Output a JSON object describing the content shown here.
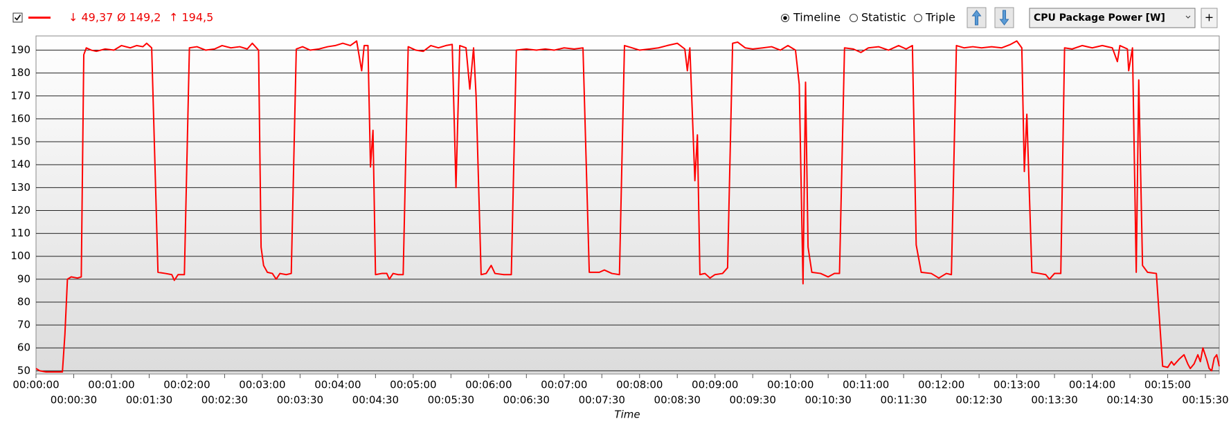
{
  "toolbar": {
    "stats": [
      "↓ 49,37",
      "Ø 149,2",
      "↑ 194,5"
    ],
    "modes": [
      "Timeline",
      "Statistic",
      "Triple"
    ],
    "sensor": "CPU Package Power [W]",
    "add_button": "+"
  },
  "chart_data": {
    "type": "line",
    "x_label": "Time",
    "color": "#ff0000",
    "grid": true,
    "x": [
      0,
      3,
      8,
      14,
      21,
      23,
      25,
      28,
      33,
      36,
      38,
      40,
      44,
      48,
      55,
      62,
      68,
      75,
      80,
      85,
      88,
      92,
      97,
      103,
      108,
      110,
      113,
      118,
      122,
      128,
      135,
      142,
      148,
      155,
      162,
      168,
      172,
      177,
      179,
      181,
      184,
      188,
      191,
      194,
      199,
      203,
      207,
      212,
      218,
      225,
      232,
      238,
      244,
      250,
      255,
      259,
      261,
      264,
      266,
      268,
      270,
      275,
      279,
      281,
      284,
      288,
      292,
      296,
      302,
      308,
      314,
      320,
      326,
      331,
      334,
      337,
      342,
      345,
      348,
      350,
      354,
      358,
      362,
      365,
      372,
      378,
      382,
      390,
      398,
      405,
      412,
      420,
      428,
      435,
      440,
      448,
      452,
      458,
      464,
      468,
      474,
      480,
      488,
      495,
      502,
      510,
      516,
      518,
      520,
      524,
      526,
      528,
      532,
      536,
      540,
      546,
      550,
      554,
      558,
      564,
      570,
      578,
      585,
      592,
      598,
      604,
      607,
      610,
      612,
      614,
      617,
      624,
      630,
      635,
      639,
      643,
      650,
      656,
      662,
      670,
      678,
      686,
      692,
      697,
      700,
      704,
      712,
      718,
      724,
      728,
      732,
      738,
      745,
      752,
      760,
      768,
      775,
      780,
      784,
      786,
      788,
      792,
      798,
      803,
      806,
      810,
      815,
      818,
      824,
      832,
      840,
      848,
      856,
      860,
      862,
      868,
      869,
      872,
      875,
      877,
      880,
      884,
      891,
      896,
      900,
      903,
      905,
      909,
      913,
      916,
      918,
      921,
      924,
      926,
      928,
      931,
      933,
      935,
      937,
      939,
      941
    ],
    "values": [
      51,
      50,
      49.5,
      49.5,
      49.5,
      66,
      90,
      91,
      90.5,
      91,
      188,
      191,
      190,
      189.5,
      190.5,
      190,
      192,
      191,
      192,
      191.5,
      193,
      191,
      93,
      92.5,
      92,
      89.5,
      92,
      92,
      191,
      191.5,
      190,
      190.5,
      192,
      191,
      191.5,
      190.5,
      193,
      190,
      104,
      96,
      93,
      92.5,
      90,
      92.5,
      92,
      92.5,
      190.5,
      191.5,
      190,
      190.5,
      191.5,
      192,
      193,
      192,
      194,
      181,
      192,
      192,
      139,
      155,
      92,
      92.5,
      92.5,
      90,
      92.5,
      92,
      92,
      191.5,
      190,
      189.5,
      192,
      191,
      192,
      192.5,
      130,
      192,
      191,
      173,
      191,
      170,
      92,
      92.5,
      96,
      92.5,
      92,
      92,
      190,
      190.5,
      190,
      190.5,
      190,
      191,
      190.5,
      191,
      93,
      93,
      94,
      92.5,
      92,
      192,
      191,
      190,
      190.5,
      191,
      192,
      193,
      190.5,
      181,
      191,
      133,
      153,
      92,
      92.5,
      90.5,
      92,
      92.5,
      95,
      193,
      193.5,
      191,
      190.5,
      191,
      191.5,
      190,
      192,
      190,
      175,
      88,
      176,
      104,
      93,
      92.5,
      91,
      92.5,
      92.5,
      191,
      190.5,
      189,
      191,
      191.5,
      190,
      192,
      190.5,
      192,
      105,
      93,
      92.5,
      90.5,
      92.5,
      92,
      192,
      191,
      191.5,
      191,
      191.5,
      191,
      192.5,
      194,
      191,
      137,
      162,
      93,
      92.5,
      92,
      90,
      92.5,
      92.5,
      191,
      190.5,
      192,
      191,
      192,
      191,
      185,
      192,
      190.5,
      181,
      191,
      93,
      177,
      96,
      93,
      92.5,
      52,
      51.5,
      54,
      52.5,
      55,
      57,
      53,
      51,
      53,
      57,
      54,
      60,
      55,
      51,
      50,
      55.5,
      57,
      52
    ],
    "xlim": [
      0,
      941
    ],
    "ylim": [
      48.6,
      196.2
    ],
    "yticks": [
      50,
      60,
      70,
      80,
      90,
      100,
      110,
      120,
      130,
      140,
      150,
      160,
      170,
      180,
      190
    ],
    "xticks": [
      {
        "value": 0,
        "label": "00:00:00"
      },
      {
        "value": 30,
        "label": "00:00:30"
      },
      {
        "value": 60,
        "label": "00:01:00"
      },
      {
        "value": 90,
        "label": "00:01:30"
      },
      {
        "value": 120,
        "label": "00:02:00"
      },
      {
        "value": 150,
        "label": "00:02:30"
      },
      {
        "value": 180,
        "label": "00:03:00"
      },
      {
        "value": 210,
        "label": "00:03:30"
      },
      {
        "value": 240,
        "label": "00:04:00"
      },
      {
        "value": 270,
        "label": "00:04:30"
      },
      {
        "value": 300,
        "label": "00:05:00"
      },
      {
        "value": 330,
        "label": "00:05:30"
      },
      {
        "value": 360,
        "label": "00:06:00"
      },
      {
        "value": 390,
        "label": "00:06:30"
      },
      {
        "value": 420,
        "label": "00:07:00"
      },
      {
        "value": 450,
        "label": "00:07:30"
      },
      {
        "value": 480,
        "label": "00:08:00"
      },
      {
        "value": 510,
        "label": "00:08:30"
      },
      {
        "value": 540,
        "label": "00:09:00"
      },
      {
        "value": 570,
        "label": "00:09:30"
      },
      {
        "value": 600,
        "label": "00:10:00"
      },
      {
        "value": 630,
        "label": "00:10:30"
      },
      {
        "value": 660,
        "label": "00:11:00"
      },
      {
        "value": 690,
        "label": "00:11:30"
      },
      {
        "value": 720,
        "label": "00:12:00"
      },
      {
        "value": 750,
        "label": "00:12:30"
      },
      {
        "value": 780,
        "label": "00:13:00"
      },
      {
        "value": 810,
        "label": "00:13:30"
      },
      {
        "value": 840,
        "label": "00:14:00"
      },
      {
        "value": 870,
        "label": "00:14:30"
      },
      {
        "value": 900,
        "label": "00:15:00"
      },
      {
        "value": 930,
        "label": "00:15:30"
      }
    ]
  }
}
